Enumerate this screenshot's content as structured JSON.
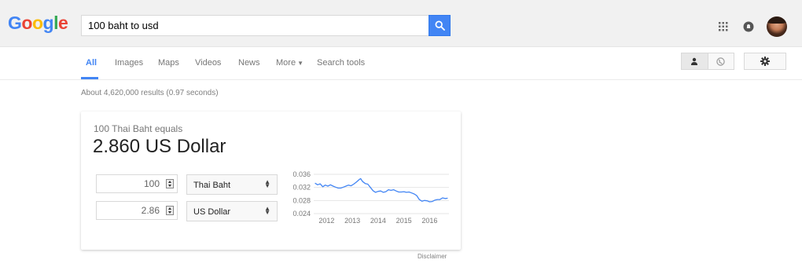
{
  "header": {
    "logo": [
      "G",
      "o",
      "o",
      "g",
      "l",
      "e"
    ],
    "logo_colors": [
      "#4285f4",
      "#ea4335",
      "#fbbc05",
      "#4285f4",
      "#34a853",
      "#ea4335"
    ],
    "query": "100 baht to usd"
  },
  "tabs": [
    {
      "label": "All",
      "active": true
    },
    {
      "label": "Images"
    },
    {
      "label": "Maps"
    },
    {
      "label": "Videos"
    },
    {
      "label": "News"
    },
    {
      "label": "More"
    },
    {
      "label": "Search tools"
    }
  ],
  "stats": "About 4,620,000 results (0.97 seconds)",
  "converter": {
    "equals_text": "100 Thai Baht equals",
    "result_text": "2.860 US Dollar",
    "from_amount": "100",
    "from_currency": "Thai Baht",
    "to_amount": "2.86",
    "to_currency": "US Dollar"
  },
  "chart_data": {
    "type": "line",
    "title": "",
    "xlabel": "",
    "ylabel": "",
    "x_tick_labels": [
      "2012",
      "2013",
      "2014",
      "2015",
      "2016"
    ],
    "y_tick_labels": [
      "0.036",
      "0.032",
      "0.028",
      "0.024"
    ],
    "ylim": [
      0.024,
      0.036
    ],
    "xlim": [
      2011.5,
      2016.75
    ],
    "grid": true,
    "color": "#4285f4",
    "series": [
      {
        "x": [
          2011.55,
          2011.65,
          2011.75,
          2011.85,
          2011.95,
          2012.05,
          2012.15,
          2012.25,
          2012.35,
          2012.45,
          2012.55,
          2012.65,
          2012.75,
          2012.85,
          2012.95,
          2013.05,
          2013.15,
          2013.25,
          2013.32,
          2013.4,
          2013.5,
          2013.6,
          2013.7,
          2013.8,
          2013.9,
          2014.0,
          2014.1,
          2014.2,
          2014.3,
          2014.4,
          2014.5,
          2014.6,
          2014.7,
          2014.8,
          2014.9,
          2015.0,
          2015.1,
          2015.2,
          2015.3,
          2015.4,
          2015.5,
          2015.6,
          2015.7,
          2015.8,
          2015.9,
          2016.0,
          2016.1,
          2016.2,
          2016.3,
          2016.4,
          2016.5,
          2016.6,
          2016.7
        ],
        "values": [
          0.0333,
          0.0328,
          0.0331,
          0.0322,
          0.0327,
          0.0324,
          0.0328,
          0.0324,
          0.0321,
          0.0318,
          0.0318,
          0.0321,
          0.0324,
          0.0327,
          0.0325,
          0.033,
          0.0336,
          0.0343,
          0.0347,
          0.0338,
          0.0332,
          0.033,
          0.032,
          0.031,
          0.0305,
          0.0308,
          0.0309,
          0.0305,
          0.0307,
          0.0313,
          0.0311,
          0.0313,
          0.0309,
          0.0306,
          0.0306,
          0.0307,
          0.0305,
          0.0306,
          0.0303,
          0.03,
          0.0295,
          0.0283,
          0.0278,
          0.028,
          0.0279,
          0.0276,
          0.0277,
          0.0281,
          0.0283,
          0.0283,
          0.0288,
          0.0286,
          0.0287
        ]
      }
    ]
  },
  "footer": {
    "disclaimer": "Disclaimer"
  }
}
